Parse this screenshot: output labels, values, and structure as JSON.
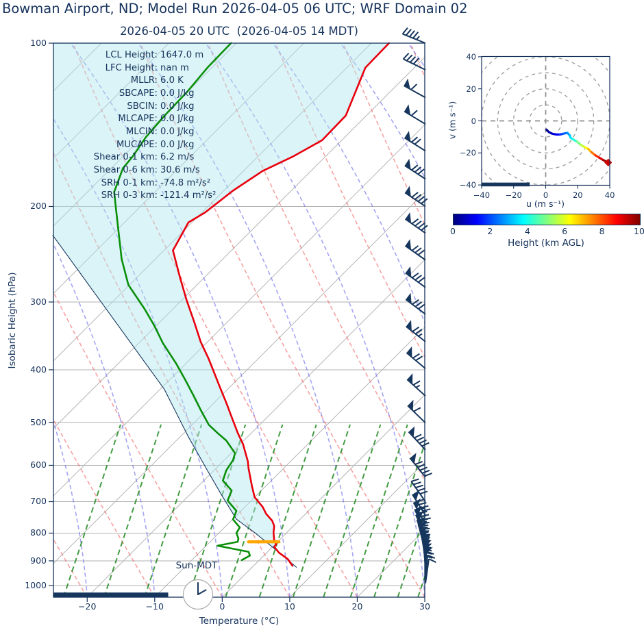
{
  "title": "Bowman Airport, ND; Model Run 2026-04-05 06 UTC; WRF Domain 02",
  "subtitle": "2026-04-05 20 UTC  (2026-04-05 14 MDT)",
  "colors": {
    "axis": "#16335c",
    "temperature": "#e8000d",
    "dewpoint": "#0a8f0a",
    "parcel": "#17365d",
    "level_marker": "#ffa500",
    "baseline_bar": "#17365d",
    "isotherm": "#b5b5b5",
    "dry_adiabat": "rgba(240,85,85,0.55)",
    "moist_adiabat": "rgba(105,105,235,0.60)",
    "mixing_ratio": "rgba(34,139,34,0.85)",
    "shade": "rgba(175,230,238,0.45)"
  },
  "skewt": {
    "xlabel": "Temperature (°C)",
    "ylabel": "Isobaric Height (hPa)",
    "x_ticks": [
      -20,
      -10,
      0,
      10,
      20,
      30
    ],
    "y_ticks": [
      100,
      200,
      300,
      400,
      500,
      600,
      700,
      800,
      900,
      1000
    ],
    "sun_label": "Sun-MDT",
    "annotations": [
      {
        "label": "LCL Height:",
        "value": "1647.0 m"
      },
      {
        "label": "LFC Height:",
        "value": "nan m"
      },
      {
        "label": "MLLR:",
        "value": "6.0 K"
      },
      {
        "label": "SBCAPE:",
        "value": "0.0 J/kg"
      },
      {
        "label": "SBCIN:",
        "value": "0.0 J/kg"
      },
      {
        "label": "MLCAPE:",
        "value": "0.0 J/kg"
      },
      {
        "label": "MLCIN:",
        "value": "0.0 J/kg"
      },
      {
        "label": "MUCAPE:",
        "value": "0.0 J/kg"
      },
      {
        "label": "Shear 0-1 km:",
        "value": "6.2 m/s"
      },
      {
        "label": "Shear 0-6 km:",
        "value": "30.6 m/s"
      },
      {
        "label": "SRH 0-1 km:",
        "value": "-74.8 m²/s²"
      },
      {
        "label": "SRH 0-3 km:",
        "value": "-121.4 m²/s²"
      }
    ]
  },
  "hodograph": {
    "xlabel": "u (m s⁻¹)",
    "ylabel": "v (m s⁻¹)",
    "x_ticks": [
      -40,
      -20,
      0,
      20,
      40
    ],
    "y_ticks": [
      -40,
      -20,
      0,
      20,
      40
    ],
    "rings": [
      10,
      20,
      30,
      40,
      50
    ]
  },
  "colorbar": {
    "label": "Height (km AGL)",
    "ticks": [
      0,
      2,
      4,
      6,
      8,
      10
    ],
    "min": 0,
    "max": 10
  },
  "chart_data": [
    {
      "type": "line",
      "name": "skew-t-log-p-sounding",
      "x_axis": {
        "label": "Temperature (°C)",
        "range": [
          -25,
          30
        ],
        "skew_deg": 45,
        "note": "series x values are skewed display positions in axis °C units"
      },
      "y_axis": {
        "label": "Isobaric Height (hPa)",
        "range": [
          100,
          1050
        ],
        "scale": "log",
        "gridlines": [
          100,
          200,
          300,
          400,
          500,
          600,
          700,
          800,
          900,
          1000
        ]
      },
      "series": [
        {
          "name": "temperature",
          "color": "#e8000d",
          "points": [
            [
              100,
              24.7
            ],
            [
              111,
              21.2
            ],
            [
              136,
              18.3
            ],
            [
              151,
              14.8
            ],
            [
              162,
              10.4
            ],
            [
              172,
              6.0
            ],
            [
              187,
              1.6
            ],
            [
              205,
              -2.5
            ],
            [
              214,
              -5.0
            ],
            [
              241,
              -7.3
            ],
            [
              269,
              -6.3
            ],
            [
              297,
              -5.3
            ],
            [
              325,
              -4.2
            ],
            [
              355,
              -3.2
            ],
            [
              382,
              -2.0
            ],
            [
              432,
              -0.3
            ],
            [
              460,
              0.6
            ],
            [
              489,
              1.4
            ],
            [
              523,
              2.3
            ],
            [
              549,
              3.1
            ],
            [
              561,
              3.3
            ],
            [
              590,
              3.8
            ],
            [
              608,
              3.9
            ],
            [
              655,
              4.4
            ],
            [
              687,
              4.8
            ],
            [
              716,
              6.0
            ],
            [
              737,
              6.5
            ],
            [
              759,
              7.4
            ],
            [
              776,
              7.7
            ],
            [
              798,
              7.6
            ],
            [
              825,
              7.7
            ],
            [
              839,
              8.0
            ],
            [
              848,
              7.7
            ],
            [
              869,
              8.4
            ],
            [
              893,
              9.7
            ],
            [
              919,
              10.4
            ]
          ]
        },
        {
          "name": "dewpoint",
          "color": "#0a8f0a",
          "points": [
            [
              100,
              1.3
            ],
            [
              111,
              -2.2
            ],
            [
              123,
              -5.2
            ],
            [
              135,
              -8.3
            ],
            [
              149,
              -11.3
            ],
            [
              162,
              -13.3
            ],
            [
              170,
              -14.7
            ],
            [
              188,
              -16.0
            ],
            [
              204,
              -15.7
            ],
            [
              250,
              -14.9
            ],
            [
              279,
              -13.9
            ],
            [
              309,
              -11.5
            ],
            [
              331,
              -10.1
            ],
            [
              357,
              -8.8
            ],
            [
              390,
              -6.8
            ],
            [
              417,
              -5.5
            ],
            [
              445,
              -4.3
            ],
            [
              474,
              -3.2
            ],
            [
              505,
              -2.0
            ],
            [
              523,
              -0.7
            ],
            [
              540,
              0.6
            ],
            [
              570,
              1.9
            ],
            [
              587,
              1.6
            ],
            [
              613,
              0.6
            ],
            [
              640,
              0.1
            ],
            [
              668,
              1.4
            ],
            [
              697,
              0.8
            ],
            [
              728,
              2.1
            ],
            [
              755,
              1.6
            ],
            [
              781,
              2.6
            ],
            [
              800,
              2.1
            ],
            [
              818,
              2.4
            ],
            [
              830,
              2.3
            ],
            [
              844,
              -0.7
            ],
            [
              866,
              3.9
            ],
            [
              880,
              4.1
            ],
            [
              897,
              2.9
            ]
          ]
        },
        {
          "name": "parcel_profile",
          "color": "#17365d",
          "points": [
            [
              226,
              -25.1
            ],
            [
              315,
              -16.7
            ],
            [
              434,
              -8.6
            ],
            [
              532,
              -5.0
            ],
            [
              613,
              -2.2
            ],
            [
              687,
              0.1
            ],
            [
              754,
              2.1
            ],
            [
              800,
              4.9
            ],
            [
              860,
              8.0
            ],
            [
              925,
              11.0
            ]
          ]
        }
      ],
      "level_marker": {
        "pressure_hpa": 830,
        "x_from": 3.9,
        "x_to": 8.4,
        "color": "#ffa500"
      },
      "baseline_bar": {
        "pressure_hpa": 1040,
        "x_from": -25,
        "x_to": -8,
        "color": "#17365d"
      },
      "wind_barbs": {
        "x_axis_position": 30.2,
        "format": "[pressure_hpa, staff_angle_deg, flags, full_barbs, half_barbs]",
        "list": [
          [
            100,
            22,
            0,
            4,
            1
          ],
          [
            112,
            26,
            0,
            4,
            0
          ],
          [
            126,
            29,
            1,
            1,
            0
          ],
          [
            141,
            31,
            1,
            1,
            0
          ],
          [
            158,
            32,
            1,
            2,
            0
          ],
          [
            178,
            33,
            1,
            3,
            0
          ],
          [
            200,
            34,
            1,
            4,
            0
          ],
          [
            224,
            35,
            1,
            4,
            0
          ],
          [
            251,
            35,
            1,
            3,
            0
          ],
          [
            282,
            36,
            1,
            3,
            0
          ],
          [
            316,
            37,
            1,
            3,
            0
          ],
          [
            355,
            38,
            1,
            2,
            1
          ],
          [
            398,
            40,
            1,
            2,
            0
          ],
          [
            447,
            42,
            1,
            1,
            1
          ],
          [
            501,
            44,
            1,
            1,
            0
          ],
          [
            562,
            47,
            1,
            4,
            0
          ],
          [
            631,
            51,
            1,
            5,
            0
          ],
          [
            700,
            55,
            0,
            5,
            0
          ],
          [
            742,
            58,
            1,
            4,
            0
          ],
          [
            770,
            61,
            1,
            4,
            0
          ],
          [
            795,
            64,
            1,
            3,
            0
          ],
          [
            815,
            67,
            1,
            3,
            0
          ],
          [
            835,
            70,
            1,
            3,
            0
          ],
          [
            852,
            73,
            1,
            2,
            0
          ],
          [
            868,
            76,
            1,
            2,
            0
          ],
          [
            882,
            79,
            1,
            2,
            0
          ],
          [
            895,
            81,
            1,
            1,
            0
          ],
          [
            907,
            83,
            1,
            1,
            0
          ],
          [
            918,
            85,
            1,
            1,
            0
          ],
          [
            930,
            86,
            1,
            1,
            0
          ],
          [
            945,
            88,
            1,
            1,
            0
          ],
          [
            960,
            92,
            0,
            1,
            1
          ],
          [
            975,
            95,
            0,
            1,
            0
          ],
          [
            990,
            98,
            0,
            1,
            0
          ]
        ]
      }
    },
    {
      "type": "line",
      "name": "hodograph",
      "x_axis": {
        "label": "u (m s⁻¹)",
        "range": [
          -40,
          40
        ]
      },
      "y_axis": {
        "label": "v (m s⁻¹)",
        "range": [
          -40,
          40
        ]
      },
      "ring_radii": [
        10,
        20,
        30,
        40,
        50
      ],
      "colormap": "jet",
      "color_by": "height_km_agl",
      "color_range": [
        0,
        10
      ],
      "points": [
        [
          0.5,
          -5.5,
          0.05
        ],
        [
          2,
          -7,
          0.3
        ],
        [
          4,
          -8,
          0.6
        ],
        [
          6.5,
          -8.5,
          1.0
        ],
        [
          9,
          -8.5,
          1.5
        ],
        [
          11,
          -8,
          2.0
        ],
        [
          13.5,
          -7.5,
          2.5
        ],
        [
          15,
          -9,
          3.0
        ],
        [
          15.5,
          -10.5,
          3.3
        ],
        [
          17,
          -11.5,
          3.8
        ],
        [
          19.5,
          -13,
          4.5
        ],
        [
          22,
          -15,
          5.3
        ],
        [
          24.5,
          -16.5,
          6.0
        ],
        [
          26.5,
          -17.5,
          6.6
        ],
        [
          28.5,
          -19.5,
          7.3
        ],
        [
          31,
          -21.5,
          8.0
        ],
        [
          33.5,
          -23,
          8.7
        ],
        [
          36,
          -24.5,
          9.4
        ],
        [
          39,
          -26,
          10.0
        ]
      ],
      "end_marker": {
        "u": 39,
        "v": -26,
        "color": "#cc0000"
      },
      "baseline_bar": {
        "v": -39.7,
        "u_from": -40,
        "u_to": -10,
        "color": "#17365d"
      }
    }
  ]
}
